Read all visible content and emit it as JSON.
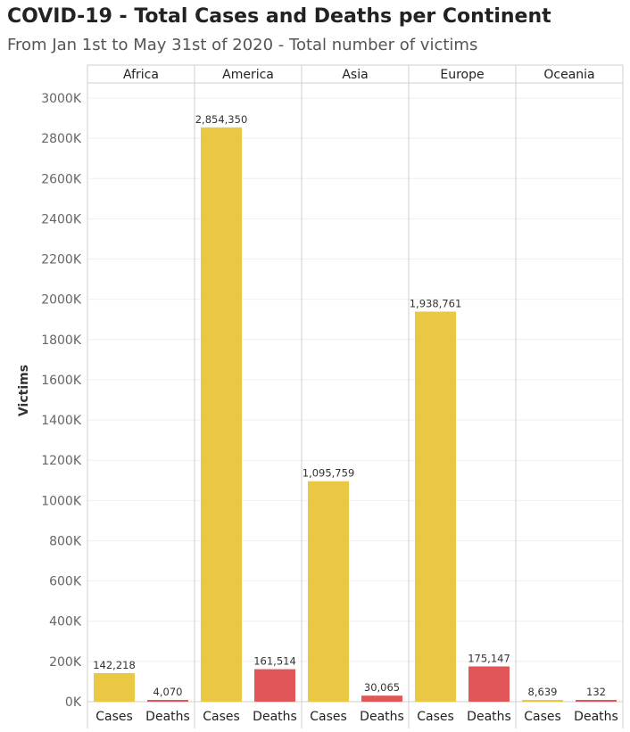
{
  "title": "COVID-19 - Total Cases and Deaths per Continent",
  "subtitle": "From Jan 1st to May 31st of 2020 - Total number of victims",
  "colors": {
    "Cases": "#EBC844",
    "Deaths": "#E15759"
  },
  "chart_data": {
    "type": "bar",
    "ylabel": "Victims",
    "ylim": [
      0,
      3000000
    ],
    "yticks": [
      {
        "value": 3000000,
        "label": "3000K"
      },
      {
        "value": 2800000,
        "label": "2800K"
      },
      {
        "value": 2600000,
        "label": "2600K"
      },
      {
        "value": 2400000,
        "label": "2400K"
      },
      {
        "value": 2200000,
        "label": "2200K"
      },
      {
        "value": 2000000,
        "label": "2000K"
      },
      {
        "value": 1800000,
        "label": "1800K"
      },
      {
        "value": 1600000,
        "label": "1600K"
      },
      {
        "value": 1400000,
        "label": "1400K"
      },
      {
        "value": 1200000,
        "label": "1200K"
      },
      {
        "value": 1000000,
        "label": "1000K"
      },
      {
        "value": 800000,
        "label": "800K"
      },
      {
        "value": 600000,
        "label": "600K"
      },
      {
        "value": 400000,
        "label": "400K"
      },
      {
        "value": 200000,
        "label": "200K"
      },
      {
        "value": 0,
        "label": "0K"
      }
    ],
    "categories": [
      "Cases",
      "Deaths"
    ],
    "grid": true,
    "panels": [
      {
        "name": "Africa",
        "bars": [
          {
            "category": "Cases",
            "value": 142218,
            "label": "142,218"
          },
          {
            "category": "Deaths",
            "value": 4070,
            "label": "4,070"
          }
        ]
      },
      {
        "name": "America",
        "bars": [
          {
            "category": "Cases",
            "value": 2854350,
            "label": "2,854,350"
          },
          {
            "category": "Deaths",
            "value": 161514,
            "label": "161,514"
          }
        ]
      },
      {
        "name": "Asia",
        "bars": [
          {
            "category": "Cases",
            "value": 1095759,
            "label": "1,095,759"
          },
          {
            "category": "Deaths",
            "value": 30065,
            "label": "30,065"
          }
        ]
      },
      {
        "name": "Europe",
        "bars": [
          {
            "category": "Cases",
            "value": 1938761,
            "label": "1,938,761"
          },
          {
            "category": "Deaths",
            "value": 175147,
            "label": "175,147"
          }
        ]
      },
      {
        "name": "Oceania",
        "bars": [
          {
            "category": "Cases",
            "value": 8639,
            "label": "8,639"
          },
          {
            "category": "Deaths",
            "value": 132,
            "label": "132"
          }
        ]
      }
    ]
  }
}
